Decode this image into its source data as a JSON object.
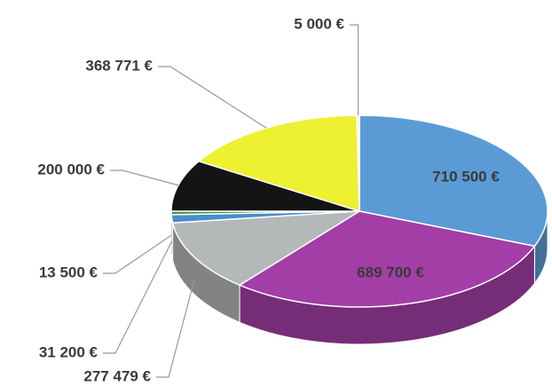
{
  "chart_data": {
    "type": "pie3d",
    "values": [
      710500,
      689700,
      277479,
      31200,
      13500,
      200000,
      368771,
      5000
    ],
    "value_labels": [
      "710 500 €",
      "689 700 €",
      "277 479 €",
      "31 200 €",
      "13 500 €",
      "200 000 €",
      "368 771 €",
      "5 000 €"
    ],
    "colors": [
      "#5b9bd5",
      "#a23ea6",
      "#b4b8b8",
      "#4a8ccc",
      "#3f9a3a",
      "#141414",
      "#eef032",
      "#f4f4f4"
    ]
  }
}
